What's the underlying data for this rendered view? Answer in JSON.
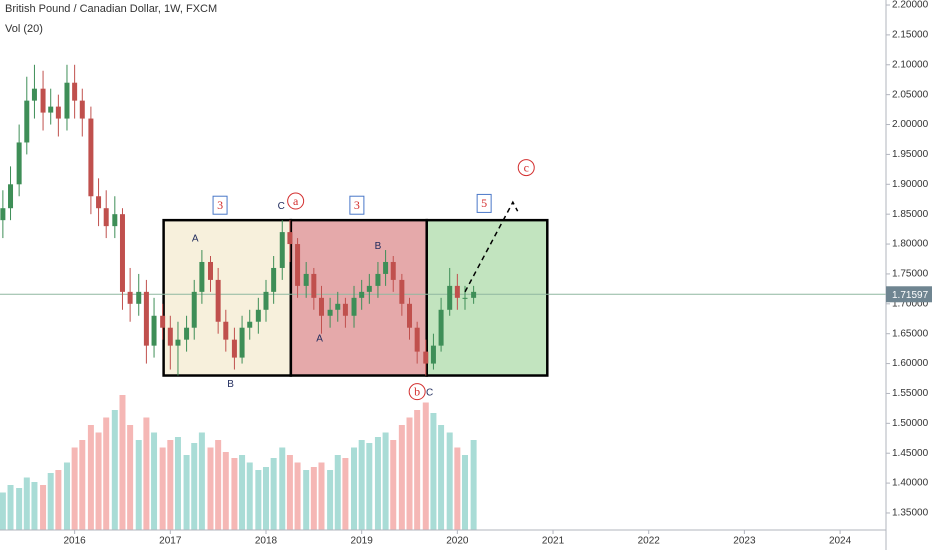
{
  "chart_data": {
    "type": "candlestick",
    "title": "British Pound / Canadian Dollar, 1W, FXCM",
    "subtitle": "Vol (20)",
    "x": [
      2015.25,
      2015.33,
      2015.42,
      2015.5,
      2015.58,
      2015.67,
      2015.75,
      2015.83,
      2015.92,
      2016.0,
      2016.08,
      2016.17,
      2016.25,
      2016.33,
      2016.42,
      2016.5,
      2016.58,
      2016.67,
      2016.75,
      2016.83,
      2016.92,
      2017.0,
      2017.08,
      2017.17,
      2017.25,
      2017.33,
      2017.42,
      2017.5,
      2017.58,
      2017.67,
      2017.75,
      2017.83,
      2017.92,
      2018.0,
      2018.08,
      2018.17,
      2018.25,
      2018.33,
      2018.42,
      2018.5,
      2018.58,
      2018.67,
      2018.75,
      2018.83,
      2018.92,
      2019.0,
      2019.08,
      2019.17,
      2019.25,
      2019.33,
      2019.42,
      2019.5,
      2019.58,
      2019.67,
      2019.75,
      2019.83,
      2019.92,
      2020.0,
      2020.08,
      2020.17
    ],
    "open": [
      1.84,
      1.86,
      1.9,
      1.97,
      2.04,
      2.06,
      2.02,
      2.03,
      2.01,
      2.07,
      2.04,
      2.01,
      1.88,
      1.86,
      1.83,
      1.85,
      1.72,
      1.7,
      1.72,
      1.63,
      1.68,
      1.66,
      1.63,
      1.64,
      1.66,
      1.72,
      1.77,
      1.74,
      1.67,
      1.64,
      1.61,
      1.66,
      1.67,
      1.69,
      1.72,
      1.76,
      1.82,
      1.8,
      1.73,
      1.75,
      1.71,
      1.68,
      1.69,
      1.7,
      1.68,
      1.71,
      1.72,
      1.73,
      1.75,
      1.77,
      1.74,
      1.7,
      1.66,
      1.62,
      1.6,
      1.63,
      1.69,
      1.73,
      1.71,
      1.71
    ],
    "high": [
      1.89,
      1.93,
      2.0,
      2.08,
      2.1,
      2.09,
      2.06,
      2.05,
      2.1,
      2.1,
      2.06,
      2.03,
      1.91,
      1.89,
      1.88,
      1.86,
      1.76,
      1.75,
      1.74,
      1.71,
      1.7,
      1.68,
      1.67,
      1.68,
      1.74,
      1.79,
      1.78,
      1.76,
      1.69,
      1.66,
      1.68,
      1.69,
      1.71,
      1.74,
      1.78,
      1.84,
      1.84,
      1.81,
      1.77,
      1.76,
      1.73,
      1.71,
      1.72,
      1.71,
      1.73,
      1.74,
      1.75,
      1.77,
      1.79,
      1.78,
      1.75,
      1.71,
      1.67,
      1.64,
      1.65,
      1.71,
      1.76,
      1.75,
      1.73,
      1.73
    ],
    "low": [
      1.81,
      1.84,
      1.88,
      1.95,
      2.01,
      1.99,
      2.0,
      1.98,
      1.99,
      2.01,
      1.98,
      1.85,
      1.83,
      1.81,
      1.81,
      1.69,
      1.67,
      1.68,
      1.6,
      1.61,
      1.64,
      1.59,
      1.58,
      1.62,
      1.64,
      1.7,
      1.72,
      1.65,
      1.62,
      1.59,
      1.6,
      1.64,
      1.65,
      1.67,
      1.7,
      1.74,
      1.77,
      1.71,
      1.71,
      1.69,
      1.65,
      1.66,
      1.67,
      1.66,
      1.66,
      1.69,
      1.7,
      1.71,
      1.73,
      1.72,
      1.68,
      1.64,
      1.6,
      1.58,
      1.59,
      1.62,
      1.68,
      1.69,
      1.69,
      1.7
    ],
    "close": [
      1.86,
      1.9,
      1.97,
      2.04,
      2.06,
      2.02,
      2.03,
      2.01,
      2.07,
      2.04,
      2.01,
      1.88,
      1.86,
      1.83,
      1.85,
      1.72,
      1.7,
      1.72,
      1.63,
      1.68,
      1.66,
      1.63,
      1.64,
      1.66,
      1.72,
      1.77,
      1.74,
      1.67,
      1.64,
      1.61,
      1.66,
      1.67,
      1.69,
      1.72,
      1.76,
      1.82,
      1.8,
      1.73,
      1.75,
      1.71,
      1.68,
      1.69,
      1.7,
      1.68,
      1.71,
      1.72,
      1.73,
      1.75,
      1.77,
      1.74,
      1.7,
      1.66,
      1.62,
      1.6,
      1.63,
      1.69,
      1.73,
      1.71,
      1.71,
      1.72
    ],
    "volume": [
      25,
      30,
      28,
      35,
      32,
      30,
      38,
      40,
      45,
      55,
      60,
      70,
      65,
      75,
      80,
      90,
      70,
      60,
      75,
      65,
      55,
      60,
      62,
      50,
      58,
      65,
      55,
      60,
      52,
      48,
      50,
      45,
      40,
      42,
      48,
      55,
      50,
      45,
      40,
      42,
      45,
      40,
      50,
      48,
      55,
      60,
      58,
      62,
      65,
      60,
      70,
      75,
      80,
      85,
      78,
      70,
      65,
      55,
      50,
      60
    ],
    "up_color": "#3e8e57",
    "down_color": "#c0504d",
    "volume_up_color": "#a9dcd6",
    "volume_down_color": "#f5b7b5",
    "xlim": [
      2015.22,
      2024.48
    ],
    "xticks": [
      2016,
      2017,
      2018,
      2019,
      2020,
      2021,
      2022,
      2023,
      2024
    ],
    "ylim": [
      1.3215,
      2.2084
    ],
    "yticks": [
      {
        "value": 1.35,
        "label": "1.35000"
      },
      {
        "value": 1.4,
        "label": "1.40000"
      },
      {
        "value": 1.45,
        "label": "1.45000"
      },
      {
        "value": 1.5,
        "label": "1.50000"
      },
      {
        "value": 1.55,
        "label": "1.55000"
      },
      {
        "value": 1.6,
        "label": "1.60000"
      },
      {
        "value": 1.65,
        "label": "1.65000"
      },
      {
        "value": 1.7,
        "label": "1.70000"
      },
      {
        "value": 1.75,
        "label": "1.75000"
      },
      {
        "value": 1.8,
        "label": "1.80000"
      },
      {
        "value": 1.85,
        "label": "1.85000"
      },
      {
        "value": 1.9,
        "label": "1.90000"
      },
      {
        "value": 1.95,
        "label": "1.95000"
      },
      {
        "value": 2.0,
        "label": "2.00000"
      },
      {
        "value": 2.05,
        "label": "2.05000"
      },
      {
        "value": 2.1,
        "label": "2.10000"
      },
      {
        "value": 2.15,
        "label": "2.15000"
      },
      {
        "value": 2.2,
        "label": "2.20000"
      }
    ],
    "last_price": 1.71597,
    "boxes": [
      {
        "x": [
          2016.93,
          2018.26
        ],
        "y": [
          1.58,
          1.84
        ],
        "color": "#f7f0dc"
      },
      {
        "x": [
          2018.26,
          2019.68
        ],
        "y": [
          1.58,
          1.84
        ],
        "color": "#e5a9aa"
      },
      {
        "x": [
          2019.68,
          2020.94
        ],
        "y": [
          1.58,
          1.84
        ],
        "color": "#c2e4bf"
      }
    ],
    "projection": {
      "x": [
        2020.08,
        2020.58,
        2020.63
      ],
      "y": [
        1.72,
        1.87,
        1.855
      ]
    },
    "annotations": [
      {
        "text": "3",
        "x": 2017.52,
        "y": 1.865,
        "style": "boxed"
      },
      {
        "text": "3",
        "x": 2018.95,
        "y": 1.865,
        "style": "boxed"
      },
      {
        "text": "5",
        "x": 2020.28,
        "y": 1.868,
        "style": "boxed"
      },
      {
        "text": "a",
        "x": 2018.31,
        "y": 1.872,
        "style": "circled"
      },
      {
        "text": "b",
        "x": 2019.58,
        "y": 1.553,
        "style": "circled"
      },
      {
        "text": "c",
        "x": 2020.72,
        "y": 1.928,
        "style": "circled"
      },
      {
        "text": "C",
        "x": 2018.16,
        "y": 1.865,
        "style": "plain"
      },
      {
        "text": "A",
        "x": 2017.26,
        "y": 1.81,
        "style": "plain"
      },
      {
        "text": "B",
        "x": 2017.63,
        "y": 1.567,
        "style": "plain"
      },
      {
        "text": "A",
        "x": 2018.56,
        "y": 1.643,
        "style": "plain"
      },
      {
        "text": "B",
        "x": 2019.17,
        "y": 1.798,
        "style": "plain"
      },
      {
        "text": "C",
        "x": 2019.71,
        "y": 1.553,
        "style": "plain"
      }
    ]
  }
}
